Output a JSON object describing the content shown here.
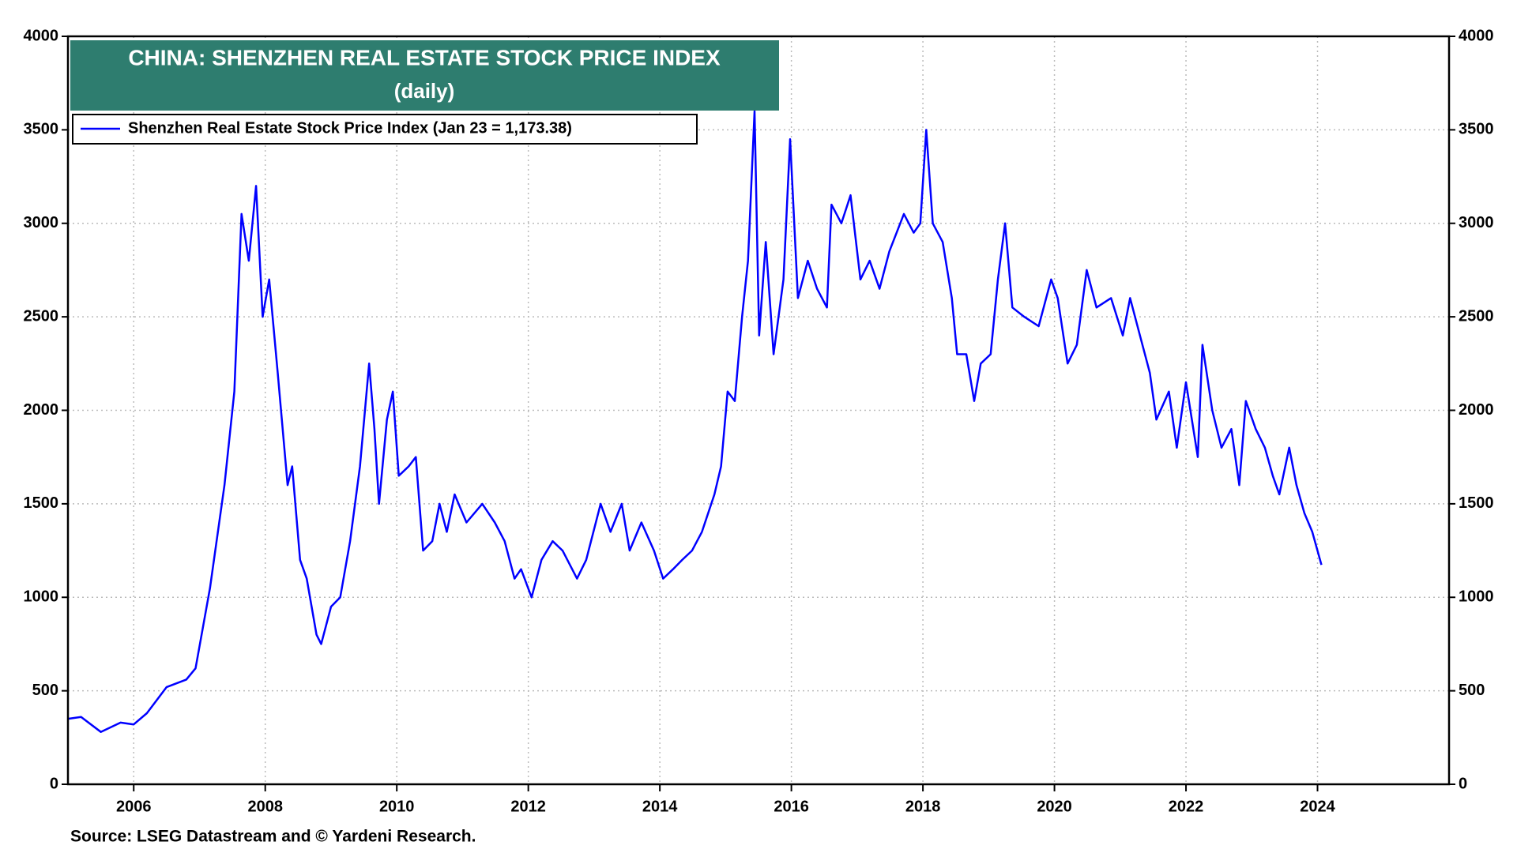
{
  "chart_data": {
    "type": "line",
    "title": "CHINA: SHENZHEN REAL ESTATE STOCK PRICE INDEX",
    "subtitle": "(daily)",
    "source": "Source: LSEG Datastream and © Yardeni Research.",
    "x": [
      2005.0,
      2005.2,
      2005.5,
      2005.8,
      2006.0,
      2006.2,
      2006.5,
      2006.8,
      2006.94,
      2007.16,
      2007.38,
      2007.53,
      2007.64,
      2007.75,
      2007.86,
      2007.96,
      2008.06,
      2008.19,
      2008.34,
      2008.41,
      2008.53,
      2008.63,
      2008.78,
      2008.85,
      2009.0,
      2009.14,
      2009.29,
      2009.44,
      2009.58,
      2009.66,
      2009.73,
      2009.85,
      2009.94,
      2010.03,
      2010.18,
      2010.29,
      2010.4,
      2010.54,
      2010.65,
      2010.76,
      2010.88,
      2011.06,
      2011.3,
      2011.49,
      2011.64,
      2011.79,
      2011.89,
      2012.05,
      2012.2,
      2012.37,
      2012.52,
      2012.74,
      2012.88,
      2013.1,
      2013.25,
      2013.42,
      2013.54,
      2013.72,
      2013.91,
      2014.05,
      2014.2,
      2014.34,
      2014.49,
      2014.64,
      2014.83,
      2014.93,
      2015.03,
      2015.14,
      2015.25,
      2015.34,
      2015.44,
      2015.51,
      2015.61,
      2015.73,
      2015.88,
      2015.98,
      2016.1,
      2016.25,
      2016.39,
      2016.54,
      2016.61,
      2016.76,
      2016.9,
      2017.05,
      2017.19,
      2017.34,
      2017.49,
      2017.71,
      2017.86,
      2017.96,
      2018.05,
      2018.15,
      2018.3,
      2018.44,
      2018.52,
      2018.66,
      2018.78,
      2018.88,
      2019.03,
      2019.14,
      2019.25,
      2019.36,
      2019.54,
      2019.76,
      2019.95,
      2020.05,
      2020.2,
      2020.34,
      2020.49,
      2020.64,
      2020.86,
      2021.04,
      2021.15,
      2021.3,
      2021.45,
      2021.55,
      2021.74,
      2021.86,
      2022.0,
      2022.18,
      2022.25,
      2022.4,
      2022.54,
      2022.69,
      2022.81,
      2022.91,
      2023.06,
      2023.2,
      2023.32,
      2023.42,
      2023.57,
      2023.68,
      2023.8,
      2023.92,
      2024.06
    ],
    "series": [
      {
        "name": "Shenzhen Real Estate Stock Price Index (Jan 23 = 1,173.38)",
        "color": "#0000ff",
        "values": [
          350,
          360,
          280,
          330,
          320,
          380,
          520,
          560,
          620,
          1050,
          1600,
          2100,
          3050,
          2800,
          3200,
          2500,
          2700,
          2200,
          1600,
          1700,
          1200,
          1100,
          800,
          750,
          950,
          1000,
          1300,
          1700,
          2250,
          1900,
          1500,
          1950,
          2100,
          1650,
          1700,
          1750,
          1250,
          1300,
          1500,
          1350,
          1550,
          1400,
          1500,
          1400,
          1300,
          1100,
          1150,
          1000,
          1200,
          1300,
          1250,
          1100,
          1200,
          1500,
          1350,
          1500,
          1250,
          1400,
          1250,
          1100,
          1150,
          1200,
          1250,
          1350,
          1550,
          1700,
          2100,
          2050,
          2500,
          2800,
          3600,
          2400,
          2900,
          2300,
          2700,
          3450,
          2600,
          2800,
          2650,
          2550,
          3100,
          3000,
          3150,
          2700,
          2800,
          2650,
          2850,
          3050,
          2950,
          3000,
          3500,
          3000,
          2900,
          2600,
          2300,
          2300,
          2050,
          2250,
          2300,
          2700,
          3000,
          2550,
          2500,
          2450,
          2700,
          2600,
          2250,
          2350,
          2750,
          2550,
          2600,
          2400,
          2600,
          2400,
          2200,
          1950,
          2100,
          1800,
          2150,
          1750,
          2350,
          2000,
          1800,
          1900,
          1600,
          2050,
          1900,
          1800,
          1650,
          1550,
          1800,
          1600,
          1450,
          1350,
          1173.38
        ]
      }
    ],
    "xlim": [
      2005,
      2026
    ],
    "xticks": [
      2006,
      2008,
      2010,
      2012,
      2014,
      2016,
      2018,
      2020,
      2022,
      2024
    ],
    "ylim": [
      0,
      4000
    ],
    "yticks": [
      0,
      500,
      1000,
      1500,
      2000,
      2500,
      3000,
      3500,
      4000
    ],
    "grid": true
  }
}
